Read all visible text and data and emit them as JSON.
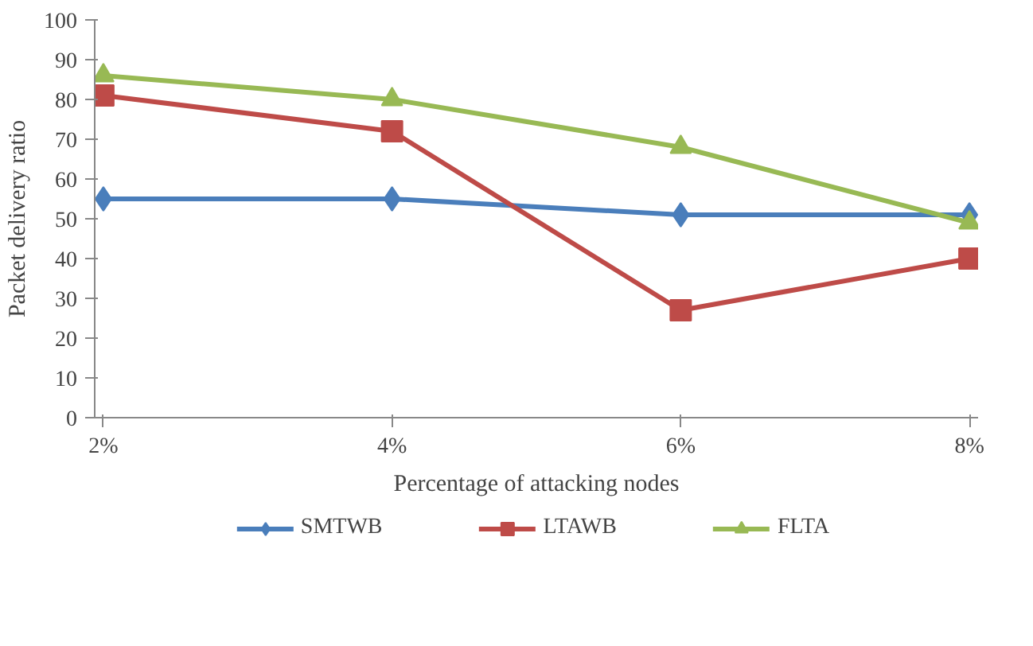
{
  "chart_data": {
    "type": "line",
    "xlabel": "Percentage of attacking nodes",
    "ylabel": "Packet delivery ratio",
    "categories": [
      "2%",
      "4%",
      "6%",
      "8%"
    ],
    "series": [
      {
        "name": "SMTWB",
        "color": "#4a7ebb",
        "marker": "diamond",
        "values": [
          55,
          55,
          51,
          51
        ]
      },
      {
        "name": "LTAWB",
        "color": "#be4b48",
        "marker": "square",
        "values": [
          81,
          72,
          27,
          40
        ]
      },
      {
        "name": "FLTA",
        "color": "#98b954",
        "marker": "triangle",
        "values": [
          86,
          80,
          68,
          49
        ]
      }
    ],
    "ylim": [
      0,
      100
    ],
    "yticks": [
      0,
      10,
      20,
      30,
      40,
      50,
      60,
      70,
      80,
      90,
      100
    ],
    "grid": false,
    "legend": "bottom",
    "line_style": "solid"
  }
}
